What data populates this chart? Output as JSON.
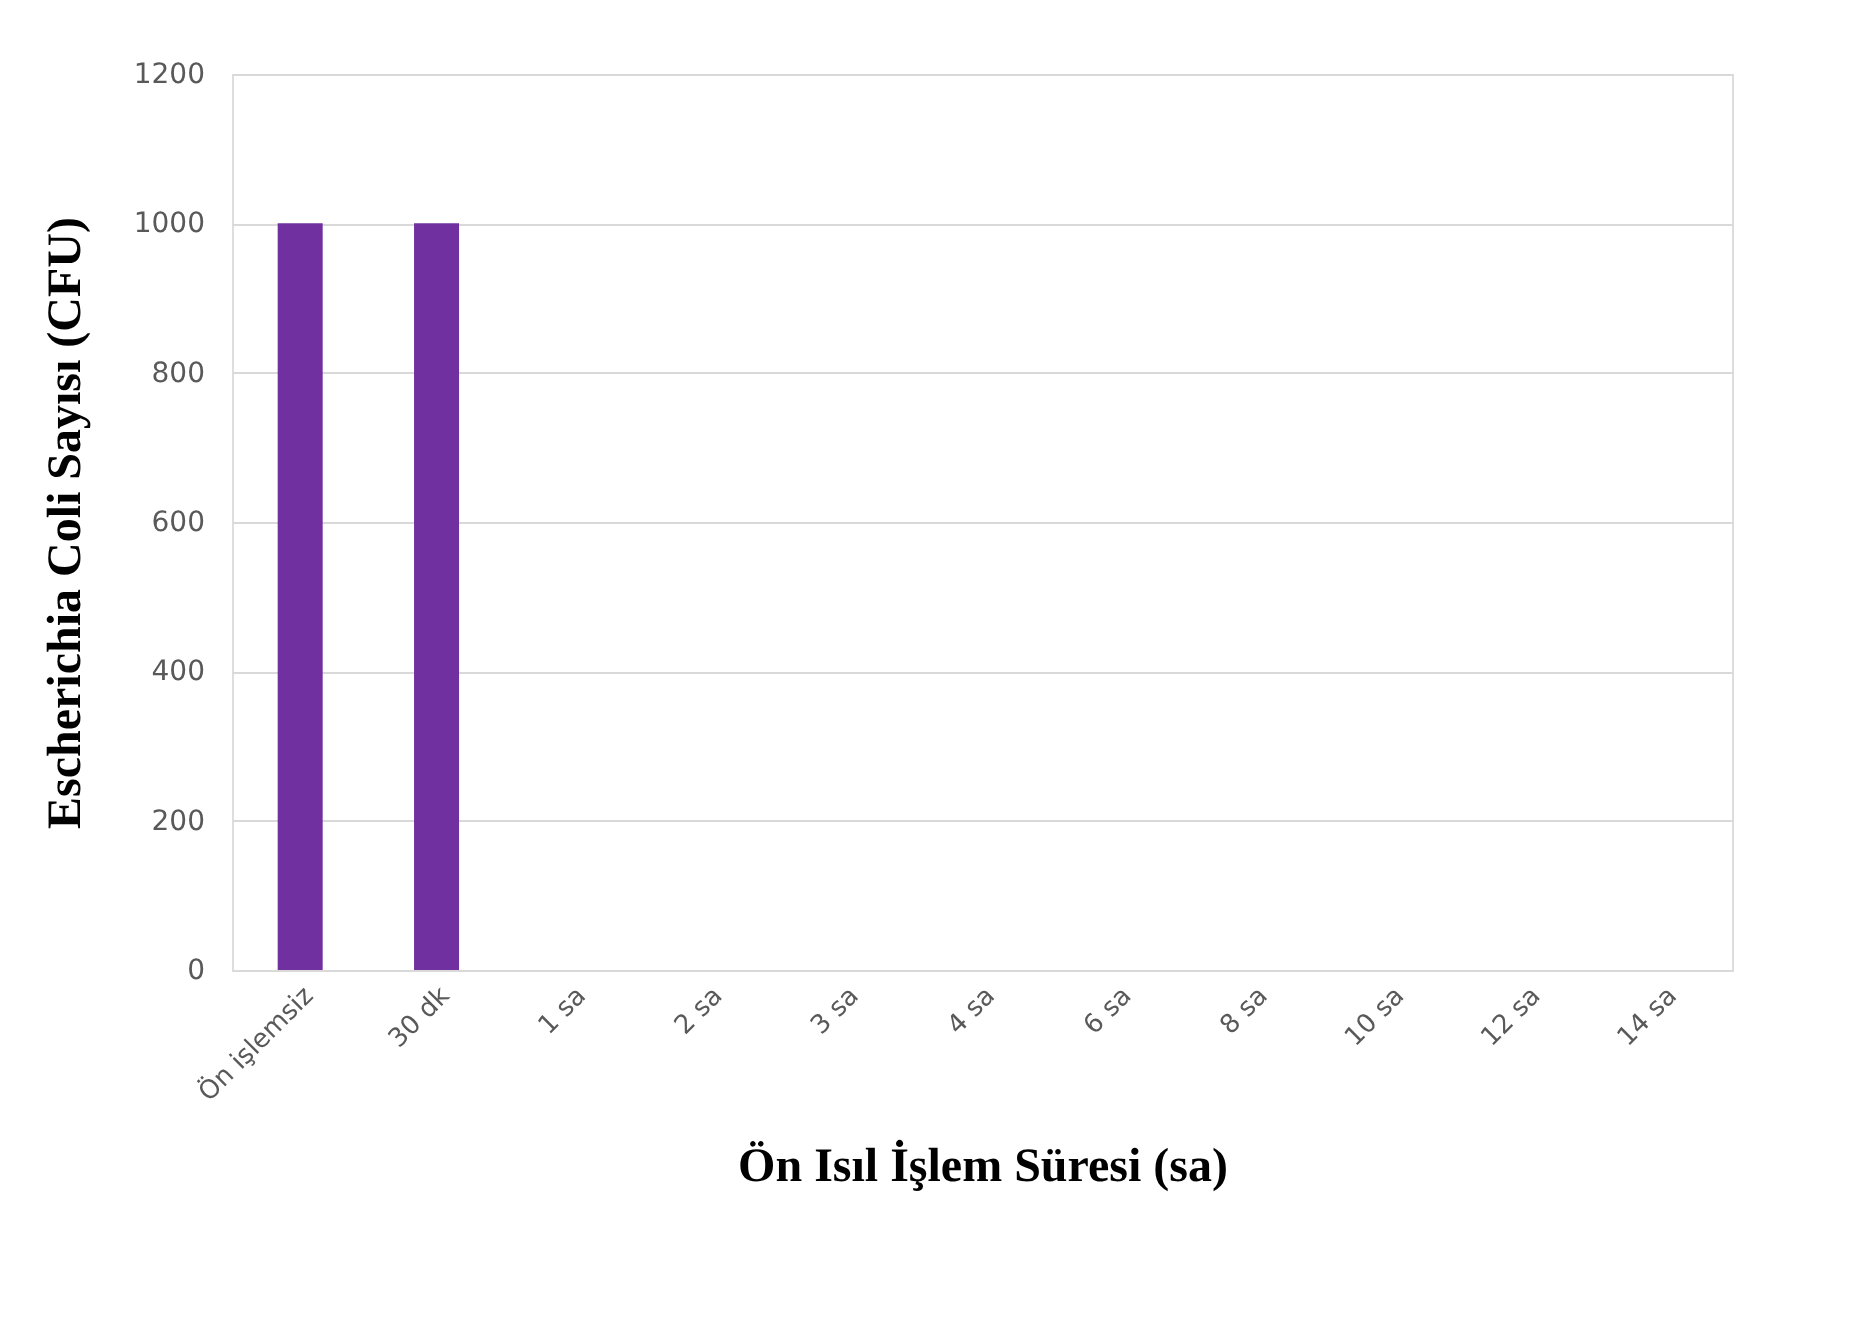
{
  "chart_data": {
    "type": "bar",
    "xlabel": "Ön Isıl İşlem Süresi (sa)",
    "ylabel": "Escherichia Coli Sayısı (CFU)",
    "categories": [
      "Ön işlemsiz",
      "30 dk",
      "1 sa",
      "2 sa",
      "3 sa",
      "4 sa",
      "6 sa",
      "8 sa",
      "10 sa",
      "12 sa",
      "14 sa"
    ],
    "values": [
      1000,
      1000,
      0,
      0,
      0,
      0,
      0,
      0,
      0,
      0,
      0
    ],
    "color": "#7030a0",
    "ylim": [
      0,
      1200
    ],
    "yticks": [
      0,
      200,
      400,
      600,
      800,
      1000,
      1200
    ],
    "grid": "y"
  }
}
